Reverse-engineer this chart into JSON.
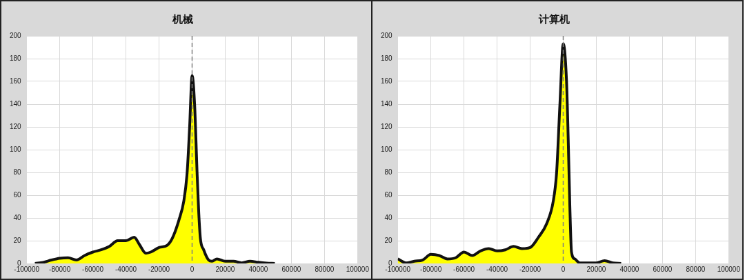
{
  "chart_data": [
    {
      "type": "area",
      "title": "机械",
      "xlim": [
        -100000,
        100000
      ],
      "xticks": [
        -100000,
        -80000,
        -60000,
        -40000,
        -20000,
        0,
        20000,
        40000,
        60000,
        80000,
        100000
      ],
      "ylim": [
        0,
        200
      ],
      "yticks": [
        0,
        20,
        40,
        60,
        80,
        100,
        120,
        140,
        160,
        180,
        200
      ],
      "grid": true,
      "legend": false,
      "marker": "none",
      "ref_lines": [
        {
          "axis": "x",
          "value": 0,
          "color": "#808080",
          "line_style": "dashed"
        }
      ],
      "series": [
        {
          "color": "#ffff00",
          "x": [
            -95000,
            -90000,
            -85000,
            -80000,
            -75000,
            -70000,
            -65000,
            -60000,
            -55000,
            -50000,
            -45000,
            -40000,
            -35000,
            -32000,
            -28000,
            -25000,
            -20000,
            -15000,
            -12000,
            -8000,
            -5000,
            -3000,
            -1500,
            0,
            1500,
            3000,
            4000,
            5000,
            7000,
            10000,
            12000,
            15000,
            20000,
            25000,
            30000,
            35000,
            40000,
            45000,
            50000
          ],
          "values": [
            0,
            1,
            3,
            4.5,
            5,
            3,
            7,
            10,
            12,
            15,
            20,
            20,
            23,
            17,
            9,
            10,
            14,
            16,
            22,
            38,
            55,
            80,
            120,
            165,
            140,
            80,
            45,
            22,
            12,
            3,
            2,
            4,
            2,
            2,
            0.5,
            2,
            1,
            0.3,
            0
          ]
        }
      ]
    },
    {
      "type": "area",
      "title": "计算机",
      "xlim": [
        -100000,
        100000
      ],
      "xticks": [
        -100000,
        -80000,
        -60000,
        -40000,
        -20000,
        0,
        20000,
        40000,
        60000,
        80000,
        100000
      ],
      "ylim": [
        0,
        200
      ],
      "yticks": [
        0,
        20,
        40,
        60,
        80,
        100,
        120,
        140,
        160,
        180,
        200
      ],
      "grid": true,
      "legend": false,
      "marker": "none",
      "ref_lines": [
        {
          "axis": "x",
          "value": 0,
          "color": "#808080",
          "line_style": "dashed"
        }
      ],
      "series": [
        {
          "color": "#ffff00",
          "x": [
            -100000,
            -95000,
            -90000,
            -85000,
            -80000,
            -75000,
            -70000,
            -65000,
            -60000,
            -55000,
            -50000,
            -45000,
            -40000,
            -35000,
            -30000,
            -25000,
            -20000,
            -15000,
            -10000,
            -6000,
            -4000,
            -2000,
            0,
            2000,
            3000,
            4000,
            5000,
            7000,
            10000,
            15000,
            20000,
            25000,
            30000,
            35000
          ],
          "values": [
            4,
            0.5,
            2,
            3,
            8,
            7,
            4,
            5,
            10,
            7,
            11,
            13,
            11,
            12,
            15,
            13,
            14,
            23,
            35,
            55,
            80,
            140,
            193,
            160,
            110,
            50,
            10,
            4,
            0.5,
            0.5,
            0.5,
            2.5,
            0.5,
            0
          ]
        }
      ]
    }
  ]
}
